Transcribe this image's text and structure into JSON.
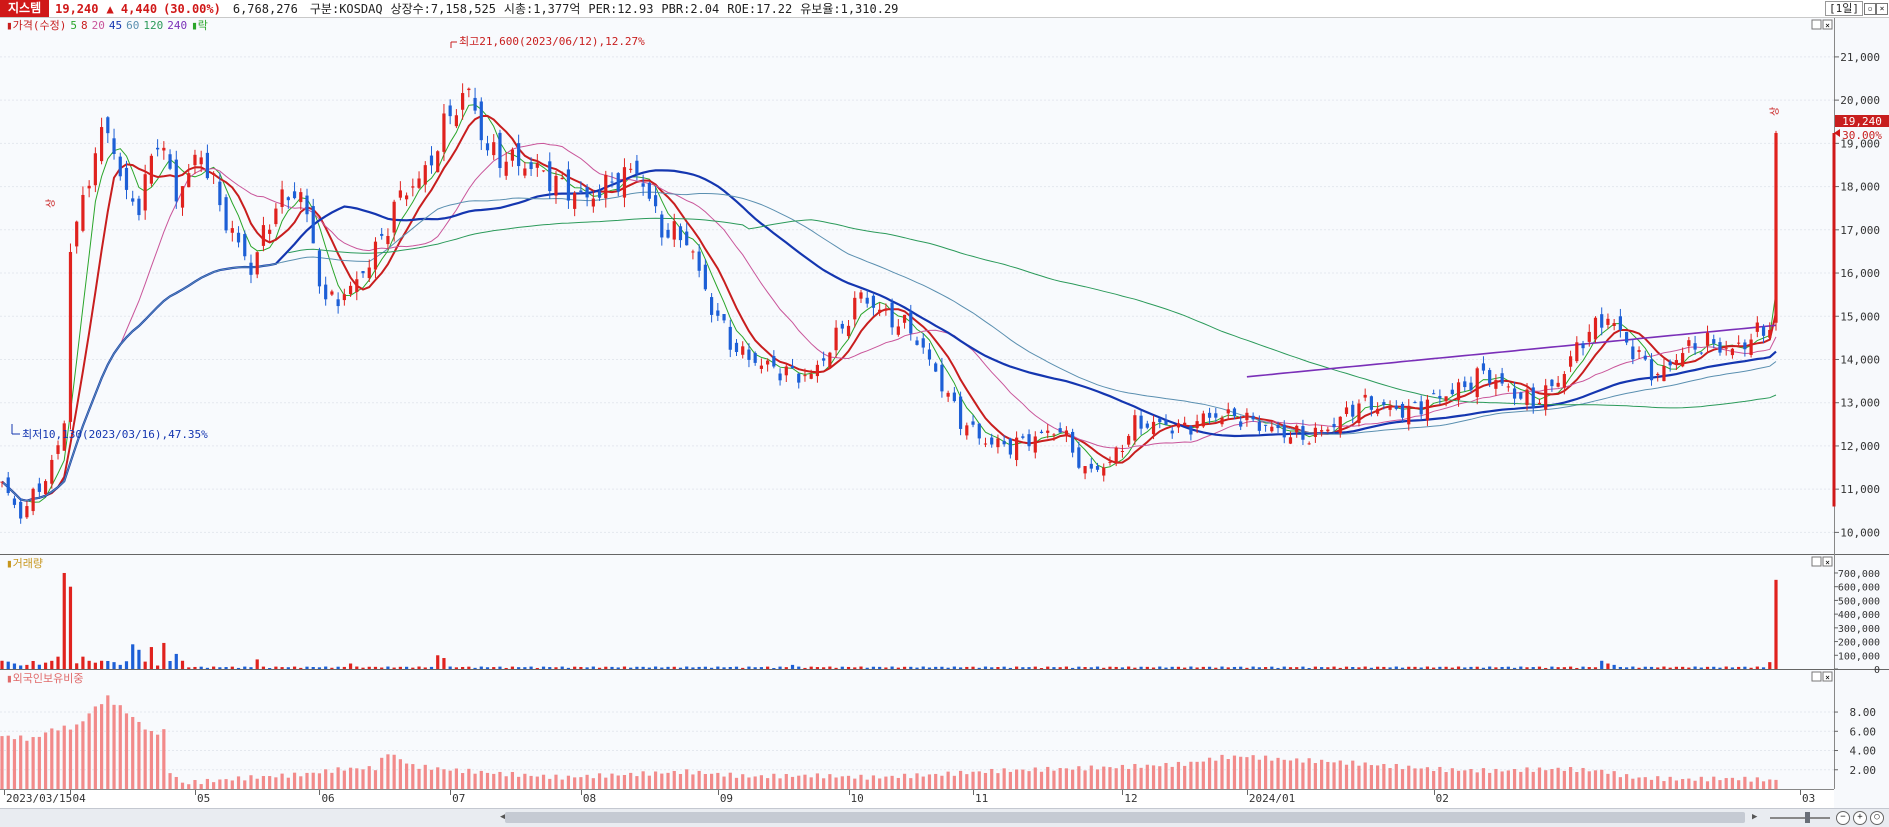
{
  "header": {
    "stock_name": "지스템",
    "price": "19,240",
    "change": "▲ 4,440",
    "change_pct": "(30.00%)",
    "volume": "6,768,276",
    "market": "구분:KOSDAQ",
    "shares": "상장수:7,158,525",
    "market_cap": "시총:1,377억",
    "per": "PER:12.93",
    "pbr": "PBR:2.04",
    "roe": "ROE:17.22",
    "reserve": "유보율:1,310.29",
    "period": "[1일]"
  },
  "legend": {
    "items": [
      {
        "text": "▮가격(수정)",
        "color": "#c81e1e"
      },
      {
        "text": "5",
        "color": "#2aa52a"
      },
      {
        "text": "8",
        "color": "#c81e1e"
      },
      {
        "text": "20",
        "color": "#c9559a"
      },
      {
        "text": "45",
        "color": "#1436b0"
      },
      {
        "text": "60",
        "color": "#5a8fb0"
      },
      {
        "text": "120",
        "color": "#2b9a5a"
      },
      {
        "text": "240",
        "color": "#7a2fb8"
      },
      {
        "text": "▮락",
        "color": "#2aa52a"
      }
    ]
  },
  "annotations": {
    "high": "최고21,600(2023/06/12),12.27%",
    "low": "최저10,130(2023/03/16),47.35%",
    "limit_up_1": "상",
    "limit_up_2": "상",
    "last_price": "19,240",
    "last_pct": "30.00%"
  },
  "volume_panel": {
    "label": "▮거래량"
  },
  "foreign_panel": {
    "label": "▮외국인보유비중"
  },
  "chart_data": [
    {
      "type": "candlestick",
      "title": "가격(수정)",
      "ylim": [
        9500,
        21900
      ],
      "yticks": [
        "10,000",
        "11,000",
        "12,000",
        "13,000",
        "14,000",
        "15,000",
        "16,000",
        "17,000",
        "18,000",
        "19,000",
        "20,000",
        "21,000"
      ],
      "x": [
        "2023/03/15",
        "04",
        "05",
        "06",
        "07",
        "08",
        "09",
        "10",
        "11",
        "12",
        "2024/01",
        "02",
        "03"
      ],
      "close_anchors": [
        [
          0,
          11100
        ],
        [
          3,
          10400
        ],
        [
          8,
          11500
        ],
        [
          10,
          12600
        ],
        [
          11,
          16500
        ],
        [
          14,
          18300
        ],
        [
          17,
          19500
        ],
        [
          19,
          18100
        ],
        [
          22,
          17500
        ],
        [
          25,
          19200
        ],
        [
          28,
          17800
        ],
        [
          32,
          18800
        ],
        [
          36,
          17200
        ],
        [
          40,
          16100
        ],
        [
          44,
          17600
        ],
        [
          48,
          17900
        ],
        [
          52,
          15300
        ],
        [
          56,
          15600
        ],
        [
          60,
          16500
        ],
        [
          64,
          17800
        ],
        [
          68,
          18300
        ],
        [
          72,
          19700
        ],
        [
          75,
          20200
        ],
        [
          78,
          18800
        ],
        [
          82,
          18600
        ],
        [
          86,
          18400
        ],
        [
          90,
          18000
        ],
        [
          94,
          17700
        ],
        [
          98,
          18100
        ],
        [
          102,
          18400
        ],
        [
          106,
          17000
        ],
        [
          110,
          16800
        ],
        [
          114,
          15200
        ],
        [
          118,
          14200
        ],
        [
          122,
          13900
        ],
        [
          126,
          13700
        ],
        [
          130,
          13600
        ],
        [
          134,
          14500
        ],
        [
          138,
          15500
        ],
        [
          142,
          15000
        ],
        [
          146,
          14700
        ],
        [
          150,
          13700
        ],
        [
          154,
          12600
        ],
        [
          158,
          12100
        ],
        [
          162,
          12000
        ],
        [
          166,
          12200
        ],
        [
          170,
          12400
        ],
        [
          174,
          11400
        ],
        [
          178,
          11600
        ],
        [
          182,
          12500
        ],
        [
          186,
          12500
        ],
        [
          190,
          12400
        ],
        [
          194,
          12700
        ],
        [
          198,
          12700
        ],
        [
          202,
          12500
        ],
        [
          206,
          12300
        ],
        [
          210,
          12200
        ],
        [
          214,
          12500
        ],
        [
          218,
          13000
        ],
        [
          222,
          12900
        ],
        [
          226,
          12800
        ],
        [
          230,
          13100
        ],
        [
          234,
          13300
        ],
        [
          238,
          13700
        ],
        [
          242,
          13300
        ],
        [
          246,
          13000
        ],
        [
          250,
          13500
        ],
        [
          254,
          14500
        ],
        [
          258,
          15000
        ],
        [
          262,
          14200
        ],
        [
          266,
          13600
        ],
        [
          270,
          14200
        ],
        [
          274,
          14400
        ],
        [
          278,
          14200
        ],
        [
          282,
          14600
        ],
        [
          284,
          14800
        ],
        [
          285,
          19240
        ]
      ],
      "series": [
        {
          "name": "5",
          "color": "#2aa52a"
        },
        {
          "name": "8",
          "color": "#c81e1e"
        },
        {
          "name": "20",
          "color": "#c9559a"
        },
        {
          "name": "45",
          "color": "#1436b0"
        },
        {
          "name": "60",
          "color": "#5a8fb0"
        },
        {
          "name": "120",
          "color": "#2b9a5a"
        },
        {
          "name": "240",
          "color": "#7a2fb8"
        }
      ]
    },
    {
      "type": "bar",
      "title": "거래량",
      "ylim": [
        0,
        780000
      ],
      "yticks": [
        "700,000",
        "600,000",
        "500,000",
        "400,000",
        "300,000",
        "200,000",
        "100,000",
        "0"
      ],
      "spikes": [
        [
          0,
          60000
        ],
        [
          2,
          40000
        ],
        [
          4,
          30000
        ],
        [
          9,
          90000
        ],
        [
          10,
          700000
        ],
        [
          11,
          600000
        ],
        [
          13,
          90000
        ],
        [
          16,
          60000
        ],
        [
          19,
          30000
        ],
        [
          21,
          180000
        ],
        [
          22,
          140000
        ],
        [
          24,
          160000
        ],
        [
          26,
          190000
        ],
        [
          28,
          110000
        ],
        [
          29,
          60000
        ],
        [
          41,
          70000
        ],
        [
          56,
          40000
        ],
        [
          70,
          100000
        ],
        [
          71,
          80000
        ],
        [
          127,
          30000
        ],
        [
          257,
          60000
        ],
        [
          258,
          40000
        ],
        [
          259,
          30000
        ],
        [
          284,
          50000
        ],
        [
          285,
          650000
        ]
      ],
      "base": 12000
    },
    {
      "type": "bar",
      "title": "외국인보유비중",
      "ylim": [
        0,
        10.5
      ],
      "yticks": [
        "8.00",
        "6.00",
        "4.00",
        "2.00"
      ],
      "anchors": [
        [
          0,
          5.5
        ],
        [
          5,
          5.2
        ],
        [
          8,
          6.2
        ],
        [
          12,
          6.5
        ],
        [
          15,
          8.5
        ],
        [
          17,
          9.5
        ],
        [
          20,
          8.0
        ],
        [
          24,
          5.8
        ],
        [
          26,
          6.0
        ],
        [
          27,
          1.8
        ],
        [
          29,
          0.6
        ],
        [
          40,
          1.2
        ],
        [
          48,
          1.5
        ],
        [
          55,
          2.1
        ],
        [
          60,
          2.2
        ],
        [
          62,
          3.8
        ],
        [
          66,
          2.4
        ],
        [
          72,
          2.0
        ],
        [
          80,
          1.6
        ],
        [
          90,
          1.2
        ],
        [
          100,
          1.5
        ],
        [
          110,
          1.8
        ],
        [
          120,
          1.3
        ],
        [
          130,
          1.4
        ],
        [
          140,
          1.2
        ],
        [
          150,
          1.5
        ],
        [
          160,
          1.9
        ],
        [
          170,
          2.1
        ],
        [
          180,
          2.3
        ],
        [
          190,
          2.6
        ],
        [
          196,
          3.3
        ],
        [
          200,
          3.4
        ],
        [
          205,
          3.1
        ],
        [
          215,
          2.8
        ],
        [
          225,
          2.3
        ],
        [
          232,
          2.0
        ],
        [
          240,
          1.9
        ],
        [
          250,
          2.1
        ],
        [
          257,
          1.9
        ],
        [
          262,
          1.2
        ],
        [
          270,
          1.0
        ],
        [
          278,
          1.1
        ],
        [
          285,
          0.9
        ]
      ]
    }
  ]
}
